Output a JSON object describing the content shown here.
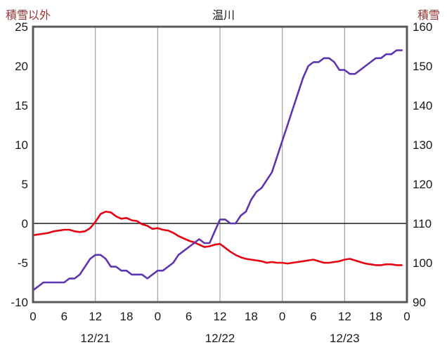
{
  "chart_data": {
    "type": "line",
    "title": "温川",
    "x_unit": "hour",
    "x_hours_range": [
      0,
      72
    ],
    "x_tick_step_hours": 6,
    "x_tick_labels": [
      "0",
      "6",
      "12",
      "18",
      "0",
      "6",
      "12",
      "18",
      "0",
      "6",
      "12",
      "18",
      "0"
    ],
    "date_labels": [
      {
        "label": "12/21",
        "hour": 12
      },
      {
        "label": "12/22",
        "hour": 36
      },
      {
        "label": "12/23",
        "hour": 60
      }
    ],
    "left_axis": {
      "title": "積雪以外",
      "min": -10,
      "max": 25,
      "tick_step": 5,
      "ticks": [
        25,
        20,
        15,
        10,
        5,
        0,
        -5,
        -10
      ]
    },
    "right_axis": {
      "title": "積雪",
      "min": 90,
      "max": 160,
      "tick_step": 10,
      "ticks": [
        160,
        150,
        140,
        130,
        120,
        110,
        100,
        90
      ]
    },
    "grid": {
      "vertical_every_hours": 12,
      "zero_line": true
    },
    "style": {
      "background": "#ffffff",
      "grid_color": "#a0a0a0",
      "zero_line_color": "#3c3c3c",
      "border_color": "#595959",
      "axis_title_color": "#993333",
      "tick_label_color": "#1a1a1a"
    },
    "series": [
      {
        "id": "non-snow-series",
        "name": "積雪以外",
        "axis": "left",
        "color": "#e60012",
        "x_start_hour": 0,
        "x_step_hours": 1,
        "values": [
          -1.5,
          -1.4,
          -1.3,
          -1.2,
          -1.0,
          -0.9,
          -0.8,
          -0.8,
          -1.0,
          -1.1,
          -1.0,
          -0.6,
          0.2,
          1.2,
          1.5,
          1.4,
          0.9,
          0.6,
          0.7,
          0.4,
          0.3,
          -0.1,
          -0.3,
          -0.7,
          -0.6,
          -0.8,
          -0.9,
          -1.2,
          -1.6,
          -1.9,
          -2.2,
          -2.4,
          -2.7,
          -3.0,
          -2.9,
          -2.7,
          -2.6,
          -3.1,
          -3.6,
          -4.0,
          -4.3,
          -4.5,
          -4.6,
          -4.7,
          -4.8,
          -5.0,
          -4.9,
          -5.0,
          -5.0,
          -5.1,
          -5.0,
          -4.9,
          -4.8,
          -4.7,
          -4.6,
          -4.8,
          -5.0,
          -5.0,
          -4.9,
          -4.8,
          -4.6,
          -4.5,
          -4.7,
          -4.9,
          -5.1,
          -5.2,
          -5.3,
          -5.3,
          -5.2,
          -5.2,
          -5.3,
          -5.3
        ]
      },
      {
        "id": "snow-depth-series",
        "name": "積雪",
        "axis": "right",
        "color": "#5e35b1",
        "x_start_hour": 0,
        "x_step_hours": 1,
        "values": [
          93,
          94,
          95,
          95,
          95,
          95,
          95,
          96,
          96,
          97,
          99,
          101,
          102,
          102,
          101,
          99,
          99,
          98,
          98,
          97,
          97,
          97,
          96,
          97,
          98,
          98,
          99,
          100,
          102,
          103,
          104,
          105,
          106,
          105,
          105,
          108,
          111,
          111,
          110,
          110,
          112,
          113,
          116,
          118,
          119,
          121,
          123,
          127,
          131,
          135,
          139,
          143,
          147,
          150,
          151,
          151,
          152,
          152,
          151,
          149,
          149,
          148,
          148,
          149,
          150,
          151,
          152,
          152,
          153,
          153,
          154,
          154
        ]
      }
    ]
  }
}
